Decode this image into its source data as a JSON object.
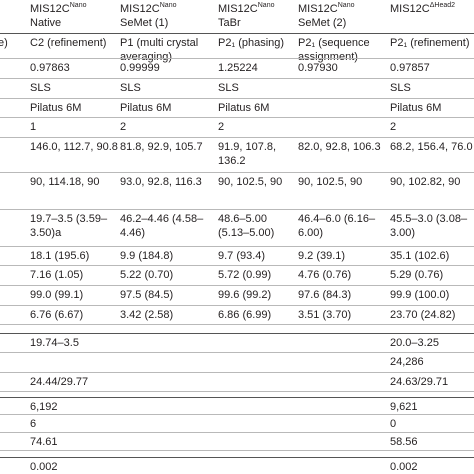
{
  "header": {
    "columns": [
      {
        "title": "MIS12C",
        "sup": "Nano",
        "sub": "Native"
      },
      {
        "title": "MIS12C",
        "sup": "Nano",
        "sub": "SeMet (1)"
      },
      {
        "title": "MIS12C",
        "sup": "Nano",
        "sub": "TaBr"
      },
      {
        "title": "MIS12C",
        "sup": "Nano",
        "sub": "SeMet (2)"
      },
      {
        "title": "MIS12C",
        "sup": "ΔHead2"
      }
    ]
  },
  "table": {
    "rows": [
      [
        "e)",
        "C2 (refinement)",
        "P1 (multi crystal averaging)",
        "P2₁ (phasing)",
        "P2₁ (sequence assignment)",
        "P2₁ (refinement)"
      ],
      [
        null,
        "0.97863",
        "0.99999",
        "1.25224",
        "0.97930",
        "0.97857"
      ],
      [
        null,
        "SLS",
        "SLS",
        "SLS",
        null,
        "SLS"
      ],
      [
        null,
        "Pilatus 6M",
        "Pilatus 6M",
        "Pilatus 6M",
        null,
        "Pilatus 6M"
      ],
      [
        null,
        "1",
        "2",
        "2",
        null,
        "2"
      ],
      [
        null,
        "146.0, 112.7, 90.8",
        "81.8, 92.9, 105.7",
        "91.9, 107.8, 136.2",
        "82.0, 92.8, 106.3",
        "68.2, 156.4, 76.0"
      ],
      [
        null,
        "90, 114.18, 90",
        "93.0, 92.8, 116.3",
        "90, 102.5, 90",
        "90, 102.5, 90",
        "90, 102.82, 90"
      ],
      [
        null,
        "19.7–3.5 (3.59–3.50)a",
        "46.2–4.46 (4.58–4.46)",
        "48.6–5.00 (5.13–5.00)",
        "46.4–6.0 (6.16–6.00)",
        "45.5–3.0 (3.08–3.00)"
      ],
      [
        null,
        "18.1 (195.6)",
        "9.9 (184.8)",
        "9.7 (93.4)",
        "9.2 (39.1)",
        "35.1 (102.6)"
      ],
      [
        null,
        "7.16 (1.05)",
        "5.22 (0.70)",
        "5.72 (0.99)",
        "4.76 (0.76)",
        "5.29 (0.76)"
      ],
      [
        null,
        "99.0 (99.1)",
        "97.5 (84.5)",
        "99.6 (99.2)",
        "97.6 (84.3)",
        "99.9 (100.0)"
      ],
      [
        null,
        "6.76 (6.67)",
        "3.42 (2.58)",
        "6.86 (6.99)",
        "3.51 (3.70)",
        "23.70 (24.82)"
      ],
      [
        null,
        null,
        null,
        null,
        null,
        null
      ],
      [
        null,
        "19.74–3.5",
        null,
        null,
        null,
        "20.0–3.25"
      ],
      [
        null,
        null,
        null,
        null,
        null,
        "24,286"
      ],
      [
        null,
        "24.44/29.77",
        null,
        null,
        null,
        "24.63/29.71"
      ],
      [
        null,
        null,
        null,
        null,
        null,
        null
      ],
      [
        null,
        "6,192",
        null,
        null,
        null,
        "9,621"
      ],
      [
        null,
        "6",
        null,
        null,
        null,
        "0"
      ],
      [
        null,
        "74.61",
        null,
        null,
        null,
        "58.56"
      ],
      [
        null,
        null,
        null,
        null,
        null,
        null
      ],
      [
        null,
        "0.002",
        null,
        null,
        null,
        "0.002"
      ]
    ]
  }
}
